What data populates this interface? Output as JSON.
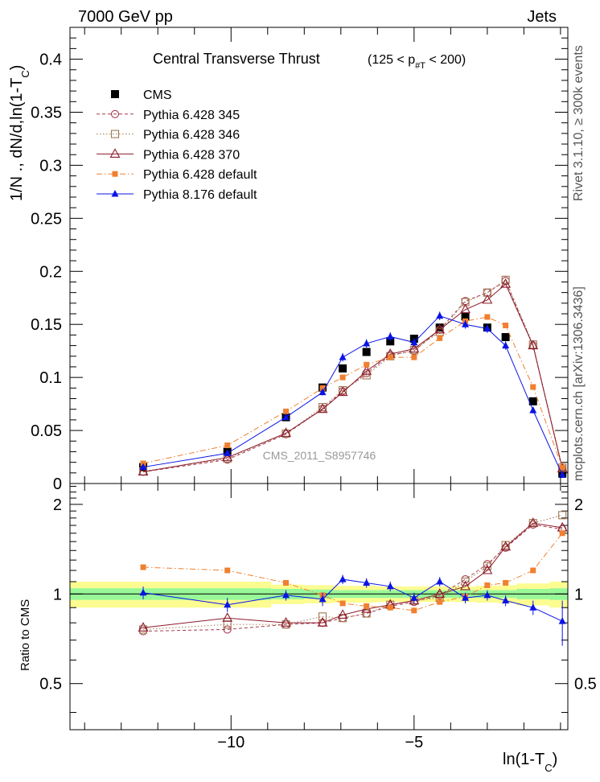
{
  "header": {
    "left": "7000 GeV pp",
    "right": "Jets"
  },
  "side_labels": {
    "rivet": "Rivet 3.1.10, ≥ 300k events",
    "mcplots": "mcplots.cern.ch [arXiv:1306.3436]"
  },
  "chart_data": {
    "type": "line",
    "title": "Central Transverse Thrust",
    "subtitle_parts": {
      "open": "(125 < p",
      "sub": "#T",
      "close": " < 200)"
    },
    "watermark": "CMS_2011_S8957746",
    "xlabel_parts": {
      "main": "ln(1-T",
      "sub": "C",
      "close": ")"
    },
    "ylabel_parts": {
      "main": "1/N ., dN/d,ln(1-T",
      "sub": "C",
      "close": ")"
    },
    "ratio_ylabel": "Ratio to CMS",
    "xlim": [
      -14.4,
      -0.8
    ],
    "ylim": [
      0,
      0.43
    ],
    "ratio_ylim": [
      0.35,
      2.35
    ],
    "x_ticks": [
      -10,
      -5
    ],
    "x_tick_labels": [
      "−10",
      "−5"
    ],
    "y_ticks": [
      0,
      0.05,
      0.1,
      0.15,
      0.2,
      0.25,
      0.3,
      0.35,
      0.4
    ],
    "y_tick_labels": [
      "0",
      "0.05",
      "0.1",
      "0.15",
      "0.2",
      "0.25",
      "0.3",
      "0.35",
      "0.4"
    ],
    "ratio_ticks": [
      0.5,
      1,
      2
    ],
    "ratio_tick_labels": [
      "0.5",
      "1",
      "2"
    ],
    "legend_position": "top-left",
    "x": [
      -12.4,
      -10.1,
      -8.5,
      -7.5,
      -6.95,
      -6.3,
      -5.65,
      -5.0,
      -4.3,
      -3.6,
      -3.0,
      -2.5,
      -1.75,
      -0.95
    ],
    "series": [
      {
        "name": "CMS",
        "color": "#000000",
        "marker": "filled-square",
        "line": "none",
        "values": [
          0.0155,
          0.03,
          0.0625,
          0.0905,
          0.1085,
          0.124,
          0.134,
          0.1365,
          0.147,
          0.1575,
          0.147,
          0.138,
          0.0775,
          0.0095
        ]
      },
      {
        "name": "Pythia 6.428 345",
        "color": "#a63a4f",
        "marker": "open-circle",
        "line": "dashed",
        "values": [
          0.011,
          0.0225,
          0.0465,
          0.0705,
          0.087,
          0.104,
          0.121,
          0.125,
          0.145,
          0.172,
          0.18,
          0.191,
          0.13,
          0.014
        ]
      },
      {
        "name": "Pythia 6.428 346",
        "color": "#a07850",
        "marker": "open-square",
        "line": "dotted",
        "values": [
          0.0115,
          0.0235,
          0.047,
          0.072,
          0.088,
          0.102,
          0.12,
          0.126,
          0.143,
          0.171,
          0.18,
          0.192,
          0.131,
          0.015
        ]
      },
      {
        "name": "Pythia 6.428 370",
        "color": "#8b1a2a",
        "marker": "open-triangle",
        "line": "solid",
        "values": [
          0.011,
          0.0245,
          0.0475,
          0.07,
          0.086,
          0.106,
          0.122,
          0.127,
          0.145,
          0.164,
          0.173,
          0.188,
          0.13,
          0.014
        ]
      },
      {
        "name": "Pythia 6.428 default",
        "color": "#f08030",
        "marker": "filled-square-small",
        "line": "dashdot",
        "values": [
          0.019,
          0.036,
          0.068,
          0.09,
          0.1,
          0.112,
          0.119,
          0.119,
          0.137,
          0.153,
          0.157,
          0.149,
          0.091,
          0.015
        ]
      },
      {
        "name": "Pythia 8.176 default",
        "color": "#0a14e6",
        "marker": "filled-triangle",
        "line": "solid",
        "values": [
          0.0155,
          0.0285,
          0.0625,
          0.086,
          0.119,
          0.132,
          0.1385,
          0.133,
          0.158,
          0.15,
          0.146,
          0.13,
          0.069,
          0.008
        ],
        "errors": [
          0.001,
          0.0015,
          0.002,
          0.003,
          0.004,
          0.004,
          0.004,
          0.004,
          0.004,
          0.004,
          0.004,
          0.004,
          0.003,
          0.001
        ]
      }
    ],
    "ratio_series": [
      {
        "name": "Pythia 6.428 345",
        "values": [
          0.75,
          0.76,
          0.79,
          0.8,
          0.83,
          0.86,
          0.91,
          0.94,
          0.99,
          1.12,
          1.26,
          1.43,
          1.71,
          1.65
        ]
      },
      {
        "name": "Pythia 6.428 346",
        "values": [
          0.76,
          0.79,
          0.79,
          0.84,
          0.83,
          0.86,
          0.92,
          0.95,
          0.97,
          1.1,
          1.24,
          1.46,
          1.73,
          1.84
        ]
      },
      {
        "name": "Pythia 6.428 370",
        "values": [
          0.77,
          0.83,
          0.8,
          0.8,
          0.85,
          0.89,
          0.92,
          0.95,
          1.0,
          1.06,
          1.2,
          1.44,
          1.73,
          1.67
        ]
      },
      {
        "name": "Pythia 6.428 default",
        "values": [
          1.23,
          1.2,
          1.09,
          0.99,
          0.93,
          0.91,
          0.9,
          0.88,
          0.94,
          0.98,
          1.07,
          1.09,
          1.2,
          1.6
        ]
      },
      {
        "name": "Pythia 8.176 default",
        "values": [
          1.01,
          0.92,
          0.99,
          0.96,
          1.12,
          1.09,
          1.06,
          0.97,
          1.1,
          0.97,
          0.99,
          0.95,
          0.9,
          0.81
        ],
        "errors": [
          0.05,
          0.05,
          0.04,
          0.05,
          0.04,
          0.04,
          0.04,
          0.04,
          0.04,
          0.04,
          0.04,
          0.04,
          0.05,
          0.14
        ]
      }
    ],
    "ratio_band": {
      "x_edges": [
        -14.4,
        -11.5,
        -8.9,
        -8.0,
        -7.2,
        -6.6,
        -6.0,
        -5.3,
        -4.7,
        -3.9,
        -3.3,
        -2.7,
        -2.2,
        -1.3,
        -0.8
      ],
      "inner": [
        0.045,
        0.045,
        0.04,
        0.035,
        0.03,
        0.03,
        0.03,
        0.03,
        0.03,
        0.03,
        0.03,
        0.03,
        0.04,
        0.045
      ],
      "outer": [
        0.1,
        0.1,
        0.075,
        0.07,
        0.065,
        0.065,
        0.06,
        0.06,
        0.06,
        0.06,
        0.065,
        0.07,
        0.085,
        0.1
      ],
      "inner_color": "#98f898",
      "outer_color": "#fcfc90"
    }
  }
}
